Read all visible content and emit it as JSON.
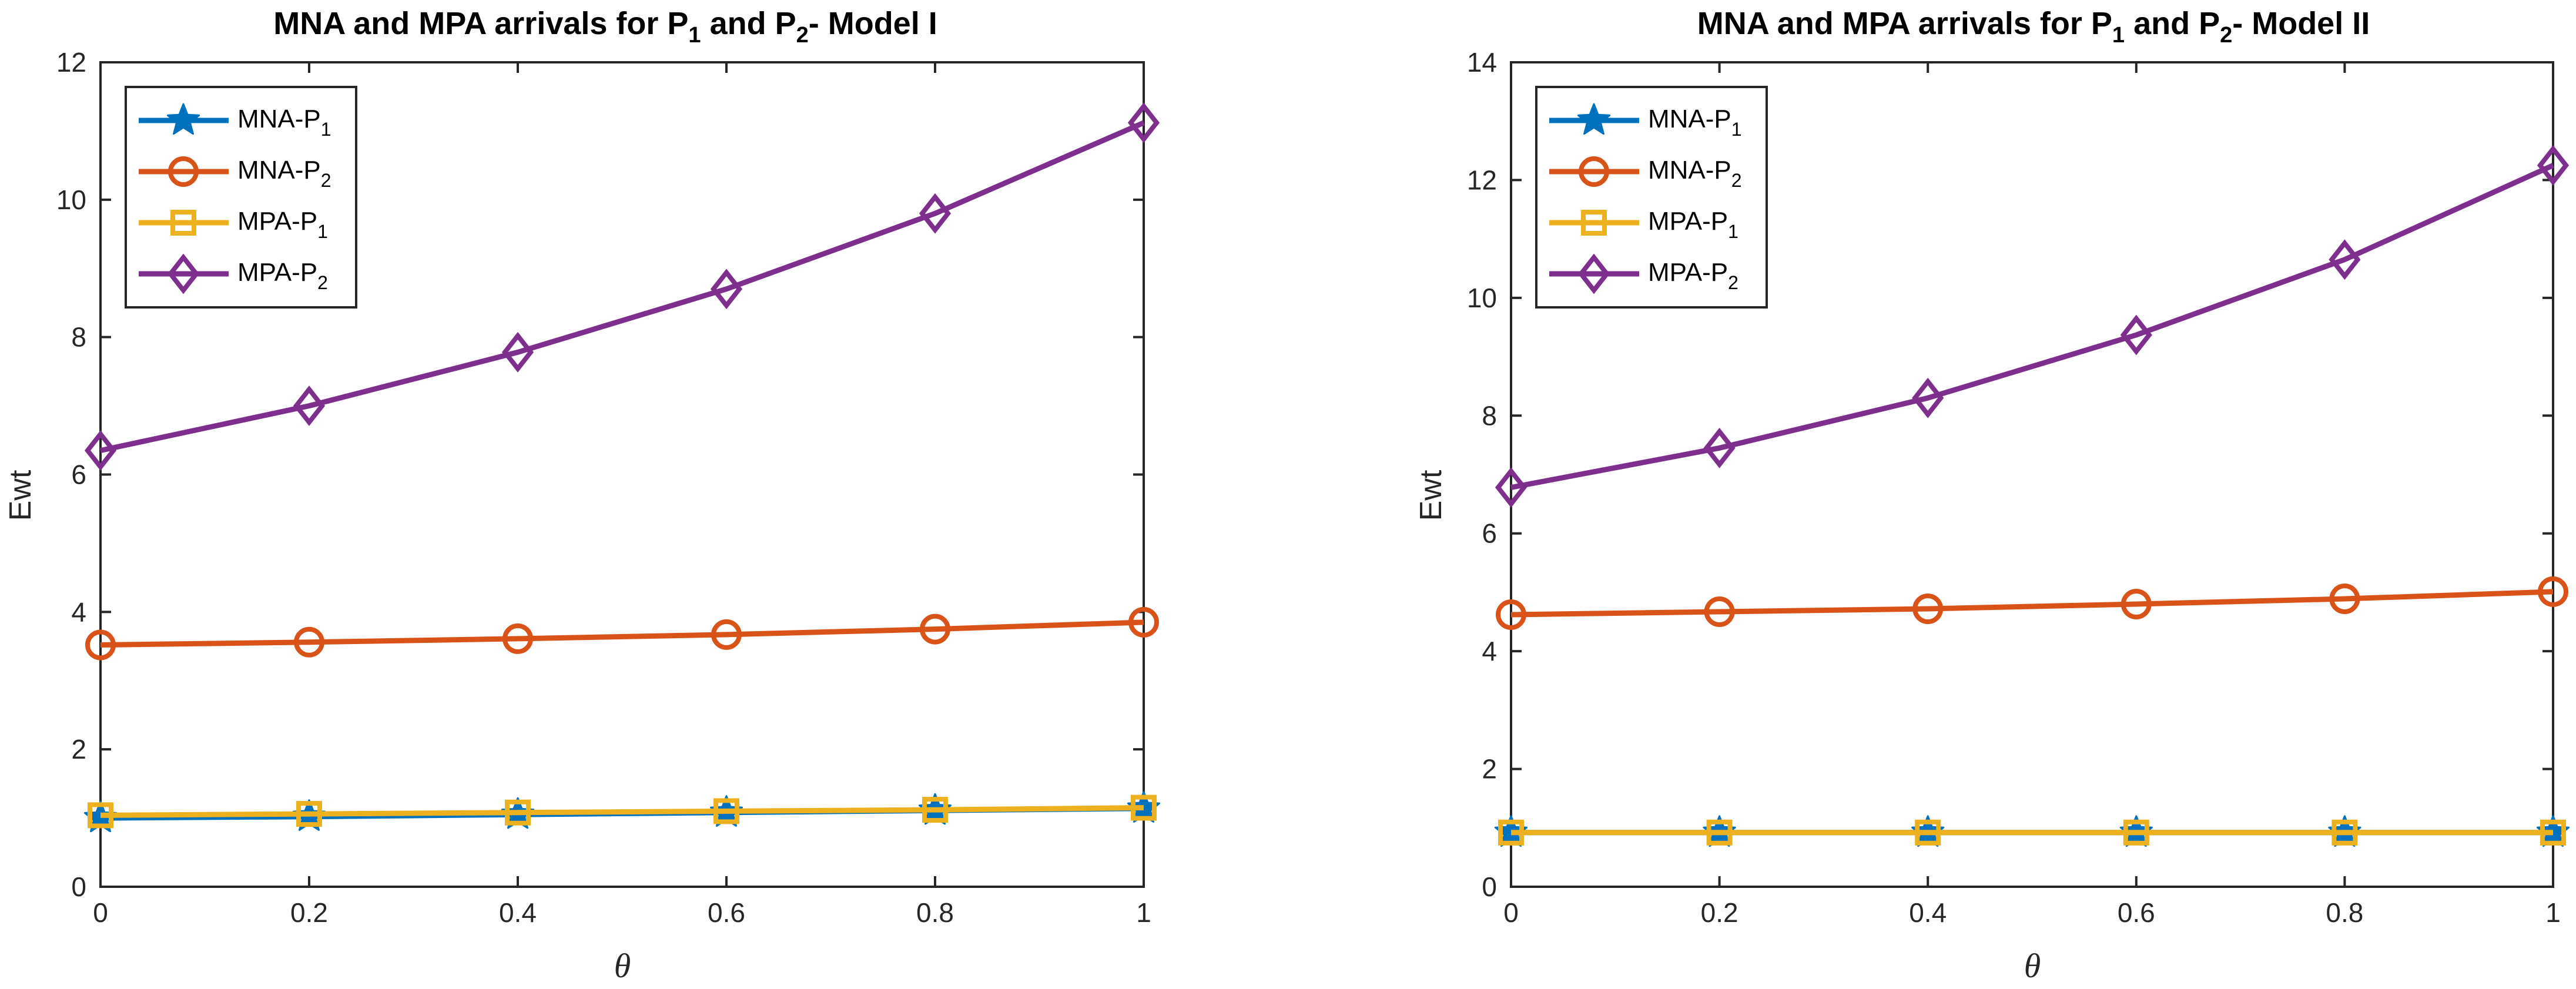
{
  "chart_data": [
    {
      "type": "line",
      "title": {
        "prefix": "MNA and MPA arrivals for P",
        "sub1": "1",
        "mid": " and P",
        "sub2": "2",
        "suffix": "- Model I"
      },
      "xlabel": "θ",
      "ylabel": "Ewt",
      "x": [
        0,
        0.2,
        0.4,
        0.6,
        0.8,
        1
      ],
      "xticks": [
        "0",
        "0.2",
        "0.4",
        "0.6",
        "0.8",
        "1"
      ],
      "xlim": [
        0,
        1
      ],
      "ylim": [
        0,
        12
      ],
      "yticks": [
        "0",
        "2",
        "4",
        "6",
        "8",
        "10",
        "12"
      ],
      "legend_position": "top-left",
      "series": [
        {
          "name": "MNA-P",
          "sub": "1",
          "marker": "star",
          "color": "#0072BD",
          "values": [
            1.0,
            1.02,
            1.05,
            1.08,
            1.11,
            1.14
          ]
        },
        {
          "name": "MNA-P",
          "sub": "2",
          "marker": "circle",
          "color": "#D95319",
          "values": [
            3.52,
            3.56,
            3.61,
            3.67,
            3.75,
            3.85
          ]
        },
        {
          "name": "MPA-P",
          "sub": "1",
          "marker": "square",
          "color": "#EDB120",
          "values": [
            1.04,
            1.06,
            1.08,
            1.1,
            1.12,
            1.15
          ]
        },
        {
          "name": "MPA-P",
          "sub": "2",
          "marker": "diamond",
          "color": "#7E2F8E",
          "values": [
            6.35,
            7.0,
            7.78,
            8.7,
            9.8,
            11.12
          ]
        }
      ]
    },
    {
      "type": "line",
      "title": {
        "prefix": "MNA and MPA arrivals for P",
        "sub1": "1",
        "mid": " and P",
        "sub2": "2",
        "suffix": "- Model II"
      },
      "xlabel": "θ",
      "ylabel": "Ewt",
      "x": [
        0,
        0.2,
        0.4,
        0.6,
        0.8,
        1
      ],
      "xticks": [
        "0",
        "0.2",
        "0.4",
        "0.6",
        "0.8",
        "1"
      ],
      "xlim": [
        0,
        1
      ],
      "ylim": [
        0,
        14
      ],
      "yticks": [
        "0",
        "2",
        "4",
        "6",
        "8",
        "10",
        "12",
        "14"
      ],
      "legend_position": "top-left",
      "series": [
        {
          "name": "MNA-P",
          "sub": "1",
          "marker": "star",
          "color": "#0072BD",
          "values": [
            0.92,
            0.92,
            0.92,
            0.92,
            0.92,
            0.92
          ]
        },
        {
          "name": "MNA-P",
          "sub": "2",
          "marker": "circle",
          "color": "#D95319",
          "values": [
            4.62,
            4.67,
            4.72,
            4.8,
            4.89,
            5.01
          ]
        },
        {
          "name": "MPA-P",
          "sub": "1",
          "marker": "square",
          "color": "#EDB120",
          "values": [
            0.92,
            0.92,
            0.92,
            0.92,
            0.92,
            0.92
          ]
        },
        {
          "name": "MPA-P",
          "sub": "2",
          "marker": "diamond",
          "color": "#7E2F8E",
          "values": [
            6.78,
            7.45,
            8.3,
            9.37,
            10.65,
            12.25
          ]
        }
      ]
    }
  ]
}
